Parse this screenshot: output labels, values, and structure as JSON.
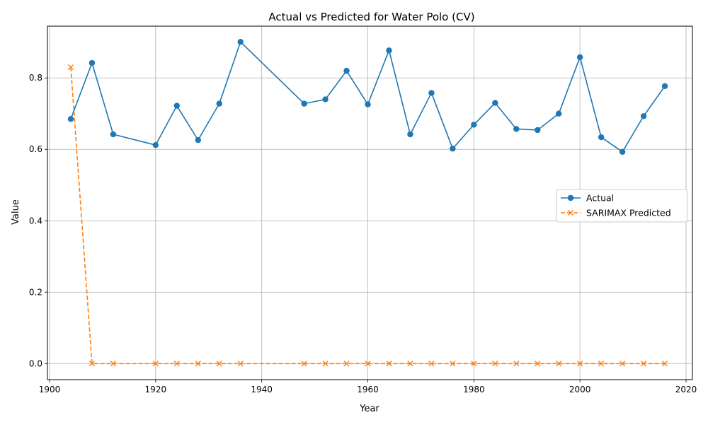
{
  "chart_data": {
    "type": "line",
    "title": "Actual vs Predicted for Water Polo (CV)",
    "xlabel": "Year",
    "ylabel": "Value",
    "xlim": [
      1899.6,
      2021.2
    ],
    "ylim": [
      -0.045,
      0.945
    ],
    "x_ticks": [
      1900,
      1920,
      1940,
      1960,
      1980,
      2000,
      2020
    ],
    "y_ticks": [
      0.0,
      0.2,
      0.4,
      0.6,
      0.8
    ],
    "x_tick_labels": [
      "1900",
      "1920",
      "1940",
      "1960",
      "1980",
      "2000",
      "2020"
    ],
    "y_tick_labels": [
      "0.0",
      "0.2",
      "0.4",
      "0.6",
      "0.8"
    ],
    "grid": true,
    "legend_position": "center-right",
    "x": [
      1904,
      1908,
      1912,
      1920,
      1924,
      1928,
      1932,
      1936,
      1948,
      1952,
      1956,
      1960,
      1964,
      1968,
      1972,
      1976,
      1980,
      1984,
      1988,
      1992,
      1996,
      2000,
      2004,
      2008,
      2012,
      2016
    ],
    "series": [
      {
        "name": "Actual",
        "color": "#1f77b4",
        "marker": "circle",
        "line_style": "solid",
        "values": [
          0.685,
          0.842,
          0.642,
          0.612,
          0.722,
          0.626,
          0.728,
          0.901,
          0.728,
          0.74,
          0.82,
          0.726,
          0.877,
          0.642,
          0.758,
          0.602,
          0.669,
          0.73,
          0.657,
          0.654,
          0.7,
          0.858,
          0.634,
          0.593,
          0.693,
          0.777
        ]
      },
      {
        "name": "SARIMAX Predicted",
        "color": "#ff7f0e",
        "marker": "x",
        "line_style": "dashed",
        "values": [
          0.83,
          0.0,
          0.0,
          0.0,
          0.0,
          0.0,
          0.0,
          0.0,
          0.0,
          0.0,
          0.0,
          0.0,
          0.0,
          0.0,
          0.0,
          0.0,
          0.0,
          0.0,
          0.0,
          0.0,
          0.0,
          0.0,
          0.0,
          0.0,
          0.0,
          0.0
        ]
      }
    ]
  }
}
